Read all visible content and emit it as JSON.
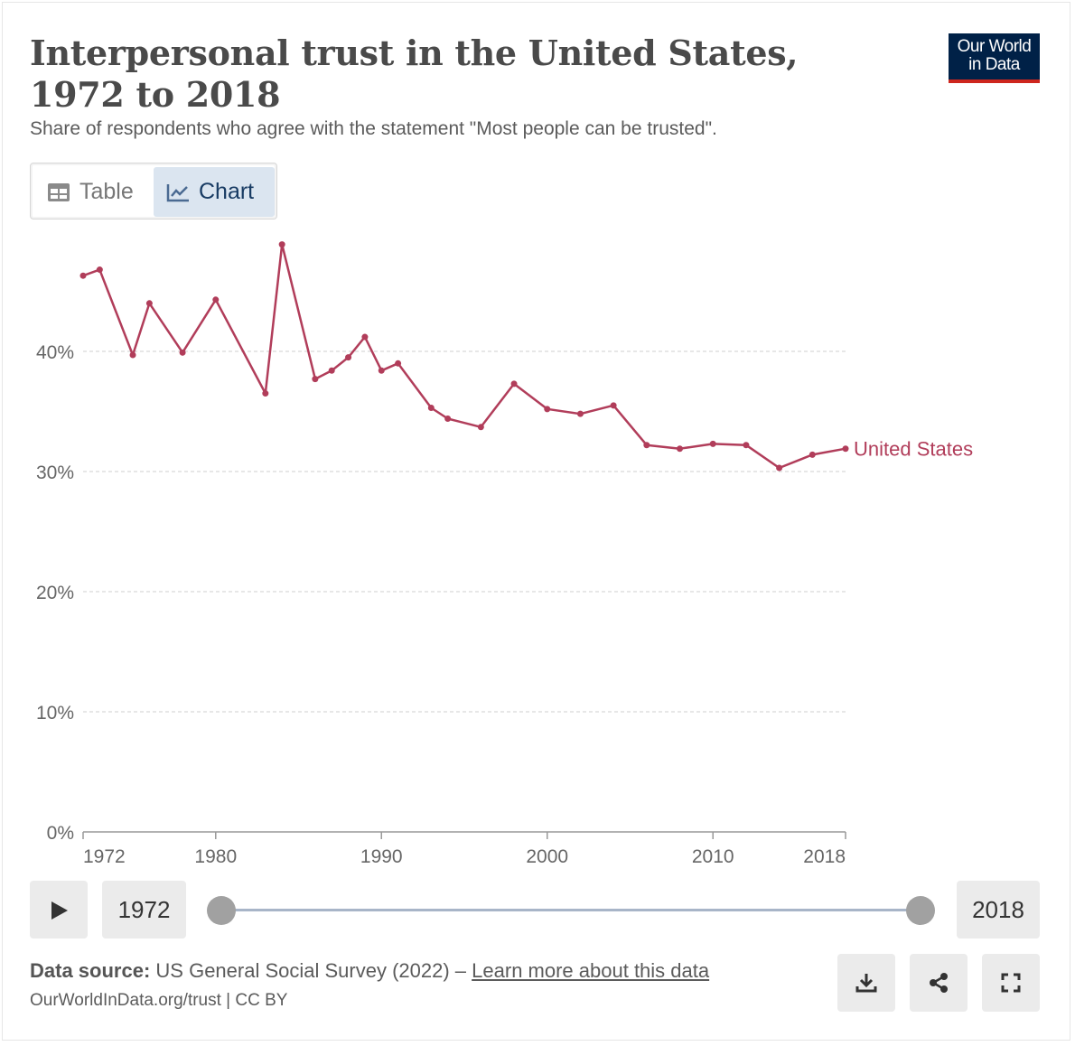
{
  "header": {
    "title": "Interpersonal trust in the United States, 1972 to 2018",
    "subtitle": "Share of respondents who agree with the statement \"Most people can be trusted\".",
    "logo_line1": "Our World",
    "logo_line2": "in Data"
  },
  "tabs": [
    {
      "label": "Table",
      "icon": "table-icon",
      "active": false
    },
    {
      "label": "Chart",
      "icon": "line-chart-icon",
      "active": true
    }
  ],
  "chart_data": {
    "type": "line",
    "title": "Interpersonal trust in the United States, 1972 to 2018",
    "subtitle": "Share of respondents who agree with the statement \"Most people can be trusted\".",
    "xlabel": "",
    "ylabel": "",
    "xlim": [
      1972,
      2018
    ],
    "ylim": [
      0,
      50
    ],
    "y_ticks": [
      0,
      10,
      20,
      30,
      40
    ],
    "y_tick_labels": [
      "0%",
      "10%",
      "20%",
      "30%",
      "40%"
    ],
    "x_ticks": [
      1972,
      1980,
      1990,
      2000,
      2010,
      2018
    ],
    "x_tick_labels": [
      "1972",
      "1980",
      "1990",
      "2000",
      "2010",
      "2018"
    ],
    "grid": "horizontal dashed",
    "legend": "inline label at line end",
    "series": [
      {
        "name": "United States",
        "color": "#b13d5a",
        "x": [
          1972,
          1973,
          1975,
          1976,
          1978,
          1980,
          1983,
          1984,
          1986,
          1987,
          1988,
          1989,
          1990,
          1991,
          1993,
          1994,
          1996,
          1998,
          2000,
          2002,
          2004,
          2006,
          2008,
          2010,
          2012,
          2014,
          2016,
          2018
        ],
        "y": [
          46.3,
          46.8,
          39.7,
          44.0,
          39.9,
          44.3,
          36.5,
          48.9,
          37.7,
          38.4,
          39.5,
          41.2,
          38.4,
          39.0,
          35.3,
          34.4,
          33.7,
          37.3,
          35.2,
          34.8,
          35.5,
          32.2,
          31.9,
          32.3,
          32.2,
          30.3,
          31.4,
          31.9
        ]
      }
    ]
  },
  "timeline": {
    "start_year": "1972",
    "end_year": "2018",
    "range_start_fraction": 0,
    "range_end_fraction": 1
  },
  "footer": {
    "source_label": "Data source:",
    "source_text": "US General Social Survey (2022) –",
    "learn_more": "Learn more about this data",
    "license": "OurWorldInData.org/trust | CC BY"
  },
  "icons": {
    "download": "download-icon",
    "share": "share-icon",
    "fullscreen": "fullscreen-icon"
  }
}
